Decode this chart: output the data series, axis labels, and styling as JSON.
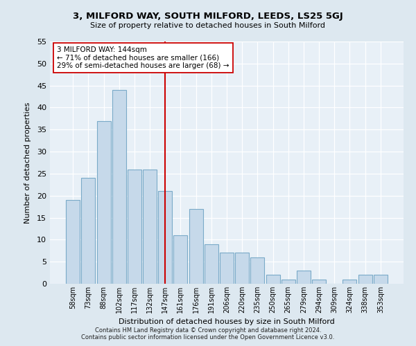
{
  "title1": "3, MILFORD WAY, SOUTH MILFORD, LEEDS, LS25 5GJ",
  "title2": "Size of property relative to detached houses in South Milford",
  "xlabel": "Distribution of detached houses by size in South Milford",
  "ylabel": "Number of detached properties",
  "categories": [
    "58sqm",
    "73sqm",
    "88sqm",
    "102sqm",
    "117sqm",
    "132sqm",
    "147sqm",
    "161sqm",
    "176sqm",
    "191sqm",
    "206sqm",
    "220sqm",
    "235sqm",
    "250sqm",
    "265sqm",
    "279sqm",
    "294sqm",
    "309sqm",
    "324sqm",
    "338sqm",
    "353sqm"
  ],
  "values": [
    19,
    24,
    37,
    44,
    26,
    26,
    21,
    11,
    17,
    9,
    7,
    7,
    6,
    2,
    1,
    3,
    1,
    0,
    1,
    2,
    2
  ],
  "bar_color": "#c6d9ea",
  "bar_edge_color": "#7aaac8",
  "vline_x": 6,
  "vline_color": "#cc0000",
  "annotation_text": "3 MILFORD WAY: 144sqm\n← 71% of detached houses are smaller (166)\n29% of semi-detached houses are larger (68) →",
  "annotation_box_color": "#ffffff",
  "annotation_box_edge": "#cc0000",
  "footer1": "Contains HM Land Registry data © Crown copyright and database right 2024.",
  "footer2": "Contains public sector information licensed under the Open Government Licence v3.0.",
  "background_color": "#dde8f0",
  "plot_bg_color": "#e8f0f7",
  "ylim": [
    0,
    55
  ],
  "yticks": [
    0,
    5,
    10,
    15,
    20,
    25,
    30,
    35,
    40,
    45,
    50,
    55
  ]
}
